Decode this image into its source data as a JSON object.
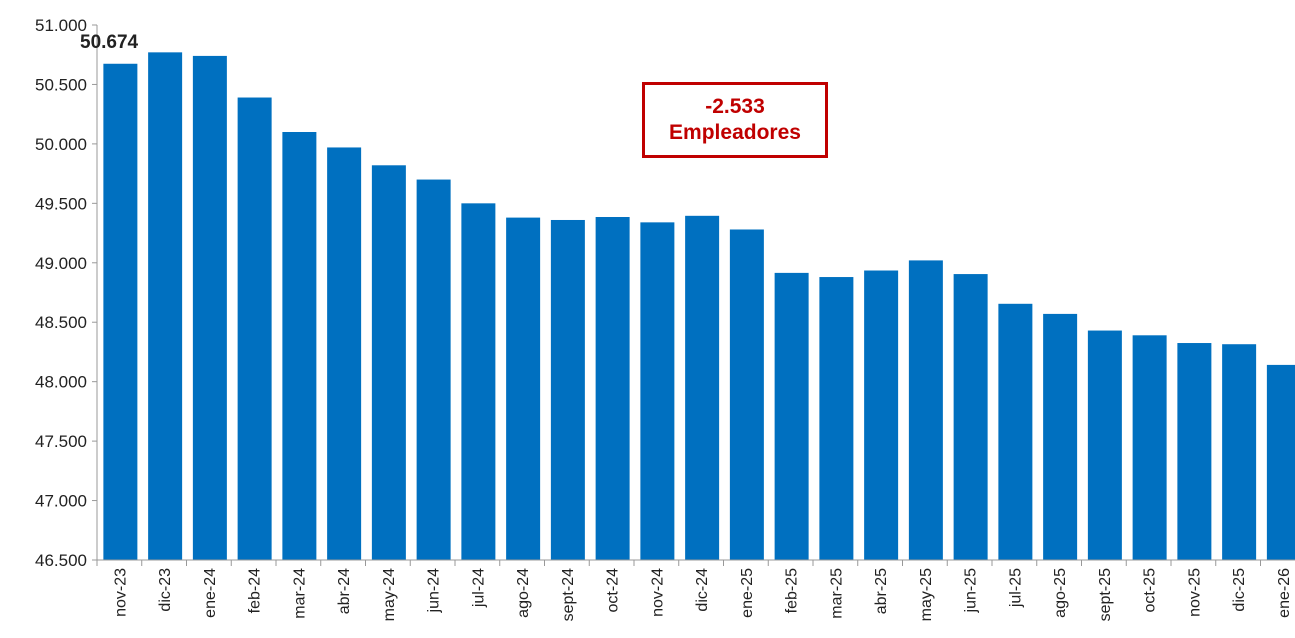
{
  "chart_data": {
    "type": "bar",
    "categories": [
      "nov-23",
      "dic-23",
      "ene-24",
      "feb-24",
      "mar-24",
      "abr-24",
      "may-24",
      "jun-24",
      "jul-24",
      "ago-24",
      "sept-24",
      "oct-24",
      "nov-24",
      "dic-24",
      "ene-25",
      "feb-25",
      "mar-25",
      "abr-25",
      "may-25",
      "jun-25",
      "jul-25",
      "ago-25",
      "sept-25",
      "oct-25",
      "nov-25",
      "dic-25",
      "ene-26"
    ],
    "values": [
      50674,
      50770,
      50740,
      50390,
      50100,
      49970,
      49820,
      49700,
      49500,
      49380,
      49360,
      49385,
      49340,
      49395,
      49280,
      48915,
      48880,
      48935,
      49020,
      48905,
      48655,
      48570,
      48430,
      48390,
      48325,
      48315,
      48141
    ],
    "ylim": [
      46500,
      51000
    ],
    "yticks": [
      "46.500",
      "47.000",
      "47.500",
      "48.000",
      "48.500",
      "49.000",
      "49.500",
      "50.000",
      "50.500",
      "51.000"
    ],
    "first_value_label": "50.674",
    "bar_color": "#0070c0",
    "grid": false,
    "annotation": {
      "line1": "-2.533",
      "line2": "Empleadores",
      "color": "#c00000"
    }
  }
}
